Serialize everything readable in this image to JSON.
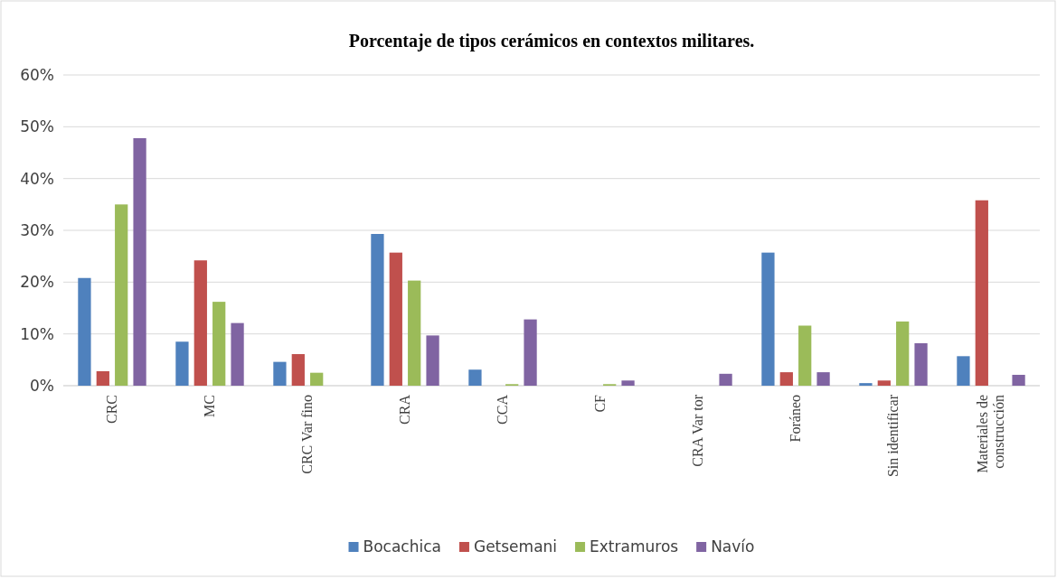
{
  "chart_data": {
    "type": "bar",
    "title": "Porcentaje de tipos cerámicos  en contextos militares.",
    "categories": [
      "CRC",
      "MC",
      "CRC Var fino",
      "CRA",
      "CCA",
      "CF",
      "CRA Var tor",
      "Foráneo",
      "Sin identificar",
      "Materiales de construcción"
    ],
    "series": [
      {
        "name": "Bocachica",
        "color": "#4f81bd",
        "values": [
          20.8,
          8.5,
          4.6,
          29.3,
          3.1,
          0,
          0,
          25.7,
          0.5,
          5.7
        ]
      },
      {
        "name": "Getsemani",
        "color": "#c0504d",
        "values": [
          2.8,
          24.2,
          6.1,
          25.7,
          0,
          0,
          0,
          2.6,
          1.0,
          35.8
        ]
      },
      {
        "name": "Extramuros",
        "color": "#9bbb59",
        "values": [
          35.0,
          16.2,
          2.5,
          20.3,
          0.3,
          0.3,
          0,
          11.6,
          12.4,
          0
        ]
      },
      {
        "name": "Navío",
        "color": "#8064a2",
        "values": [
          47.8,
          12.1,
          0,
          9.7,
          12.8,
          1.0,
          2.3,
          2.6,
          8.2,
          2.1
        ]
      }
    ],
    "ylim": [
      0,
      60
    ],
    "yticks": [
      {
        "value": 0,
        "label": "0%"
      },
      {
        "value": 10,
        "label": "10%"
      },
      {
        "value": 20,
        "label": "20%"
      },
      {
        "value": 30,
        "label": "30%"
      },
      {
        "value": 40,
        "label": "40%"
      },
      {
        "value": 50,
        "label": "50%"
      },
      {
        "value": 60,
        "label": "60%"
      }
    ],
    "grid": "y",
    "legend": "bottom"
  }
}
